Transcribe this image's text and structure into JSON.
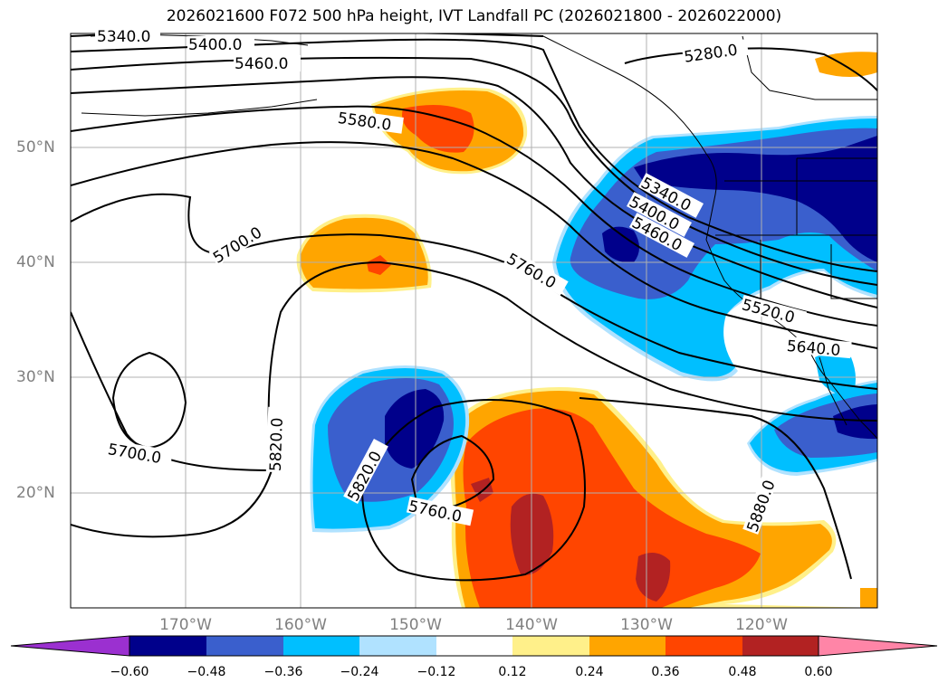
{
  "title": "2026021600 F072 500 hPa height, IVT Landfall PC (2026021800 - 2026022000)",
  "lat_labels": [
    "50°N",
    "40°N",
    "30°N",
    "20°N"
  ],
  "lon_labels": [
    "170°W",
    "160°W",
    "150°W",
    "140°W",
    "130°W",
    "120°W"
  ],
  "contour_labels": [
    "5340.0",
    "5400.0",
    "5460.0",
    "5580.0",
    "5280.0",
    "5700.0",
    "5760.0",
    "5340.0",
    "5400.0",
    "5460.0",
    "5520.0",
    "5640.0",
    "5700.0",
    "5820.0",
    "5820.0",
    "5760.0",
    "5880.0"
  ],
  "colorbar": {
    "ticks": [
      "−0.60",
      "−0.48",
      "−0.36",
      "−0.24",
      "−0.12",
      "0.12",
      "0.24",
      "0.36",
      "0.48",
      "0.60"
    ],
    "colors": [
      "#9b30d0",
      "#00008b",
      "#3a5fcd",
      "#00bfff",
      "#b0e2ff",
      "#ffffff",
      "#fff08a",
      "#ffa500",
      "#ff4500",
      "#b22222",
      "#ff85a7"
    ]
  },
  "colors": {
    "strong_neg": "#00008b",
    "mid_neg": "#3a5fcd",
    "weak_neg": "#00bfff",
    "faint_neg": "#b0e2ff",
    "faint_pos": "#fff08a",
    "weak_pos": "#ffa500",
    "mid_pos": "#ff4500",
    "strong_pos": "#b22222"
  }
}
